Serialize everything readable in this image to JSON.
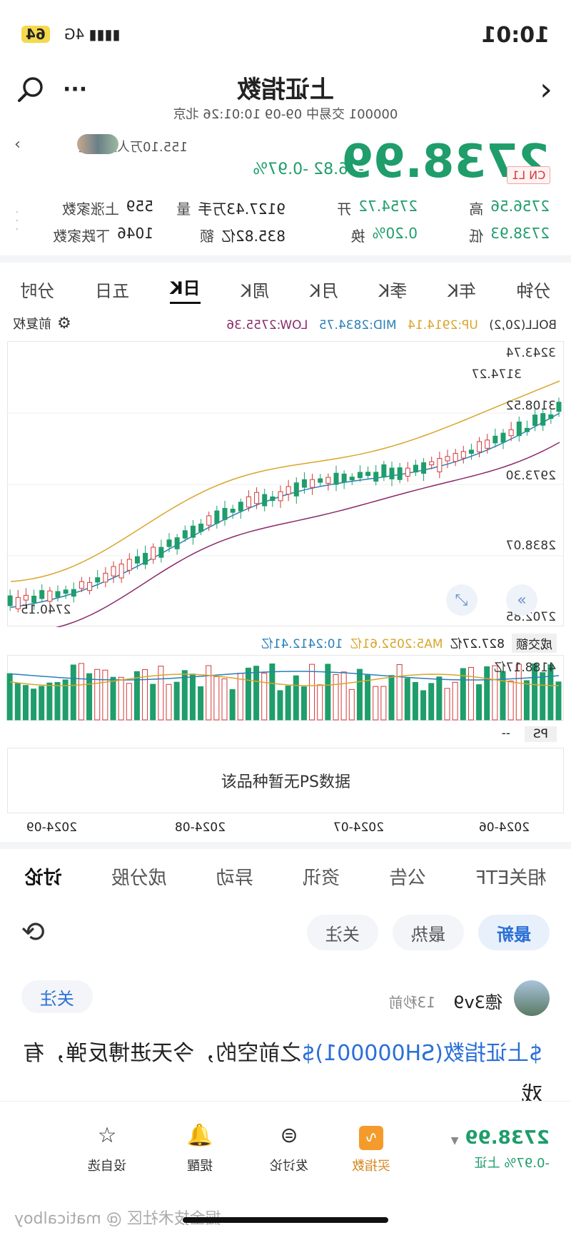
{
  "status": {
    "time": "10:01",
    "network": "4G",
    "battery": "64"
  },
  "header": {
    "title": "上证指数",
    "subtitle": "000001 交易中 09-09 10:01:26 北京"
  },
  "quote": {
    "price": "2738.99",
    "change": "-26.82",
    "change_pct": "-0.97%",
    "followers": "155.10万人加自选",
    "badge": "CN L1",
    "rows": [
      [
        {
          "label": "高",
          "value": "2756.56"
        },
        {
          "label": "开",
          "value": "2754.72"
        },
        {
          "label": "量",
          "value": "9127.43万手"
        },
        {
          "label": "上涨家数",
          "value": "559"
        }
      ],
      [
        {
          "label": "低",
          "value": "2738.93"
        },
        {
          "label": "换",
          "value": "0.20%"
        },
        {
          "label": "额",
          "value": "835.82亿"
        },
        {
          "label": "下跌家数",
          "value": "1046"
        }
      ]
    ]
  },
  "period_tabs": [
    "分时",
    "五日",
    "日K",
    "周K",
    "月K",
    "季K",
    "年K",
    "分钟"
  ],
  "active_period": "日K",
  "boll": {
    "label": "BOLL(20,2)",
    "up": "UP:2914.14",
    "mid": "MID:2834.75",
    "low": "LOW:2755.36",
    "adjust": "前复权"
  },
  "axis": {
    "price_ticks": [
      "3243.74",
      "3108.52",
      "2973.30",
      "2838.07",
      "2702.85"
    ],
    "high_mark": "3174.27",
    "low_mark": "2740.15",
    "dates": [
      "2024-06",
      "2024-07",
      "2024-08",
      "2024-09"
    ]
  },
  "volume": {
    "label": "成交额",
    "value": "827.27亿",
    "ma5": "MA5:2052.61亿",
    "ma10": "10:2412.41亿",
    "top": "4188.17亿"
  },
  "ps": {
    "label": "PS",
    "value": "--",
    "empty": "该品种暂无PS数据"
  },
  "content_tabs": [
    "讨论",
    "成分股",
    "异动",
    "资讯",
    "公告",
    "相关ETF"
  ],
  "filters": [
    "最新",
    "最热",
    "关注"
  ],
  "post": {
    "user": "德3v9",
    "time": "13秒前",
    "follow": "关注",
    "link": "$上证指数(SH000001)$",
    "text": "之前空的，今天进博反弹，有戏"
  },
  "bottom": {
    "price": "2738.99",
    "change_pct": "-0.97%",
    "index": "上证",
    "actions": [
      "买指数",
      "发讨论",
      "提醒",
      "设自选"
    ]
  },
  "watermark": "掘金技术社区 @ maticalboy",
  "colors": {
    "up": "#d23a3a",
    "down": "#1f9d6b",
    "boll_up": "#d9a52a",
    "boll_mid": "#2a7fb8",
    "boll_low": "#8a2a6a"
  }
}
